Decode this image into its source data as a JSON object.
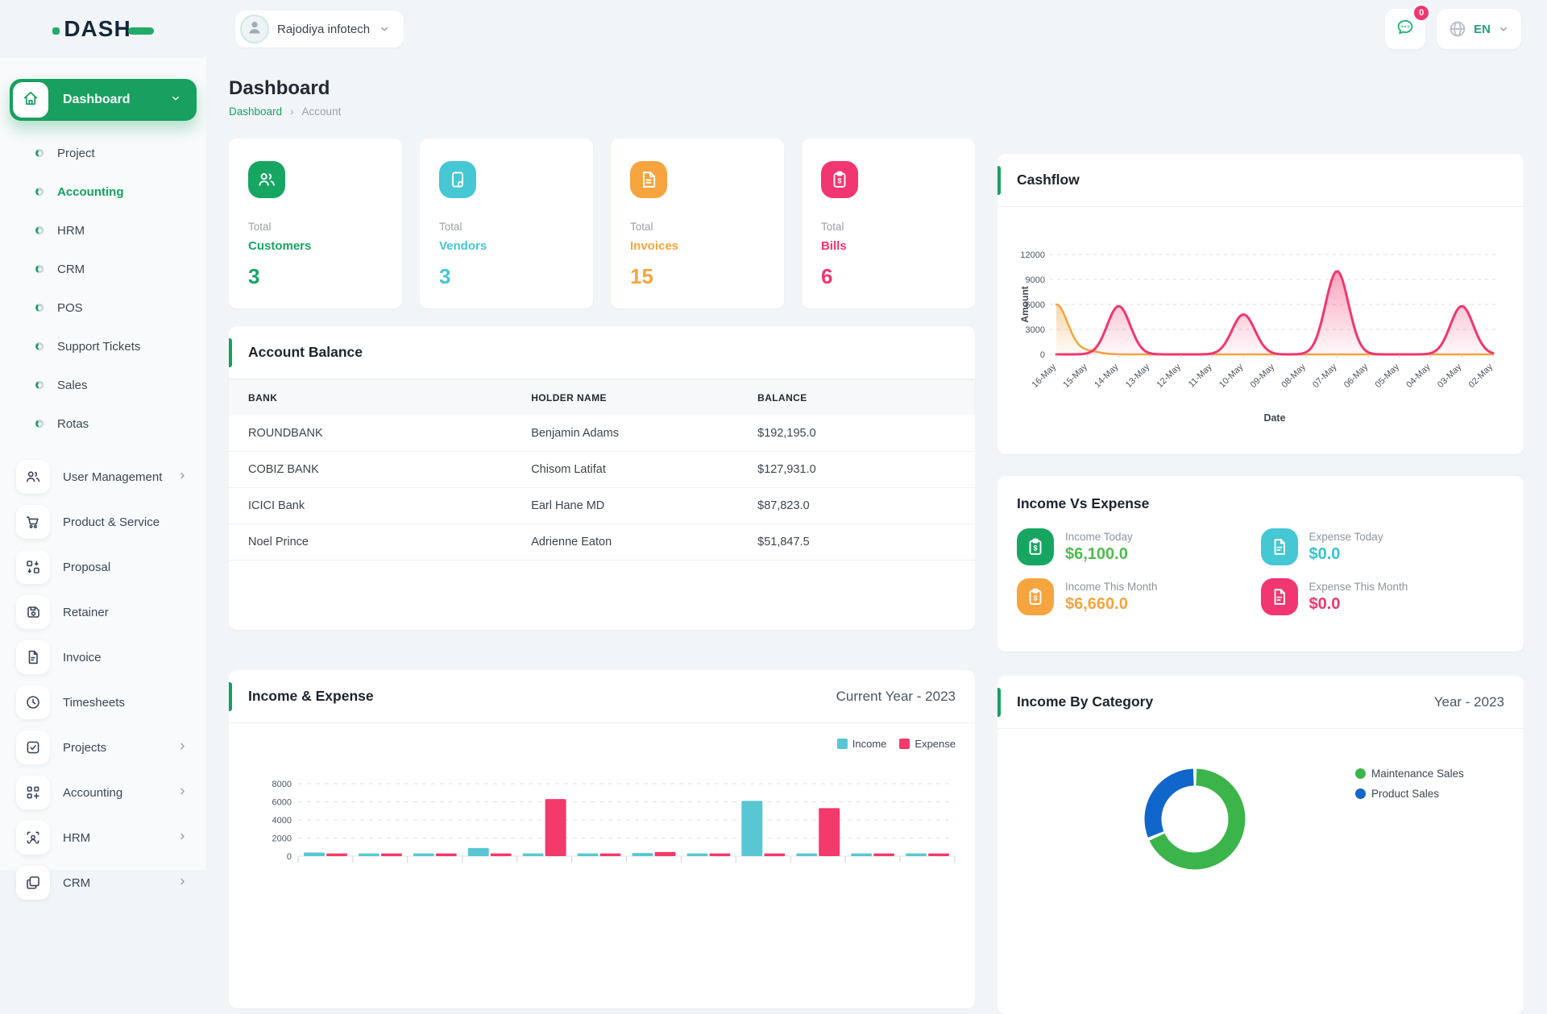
{
  "brand": {
    "name": "DASH"
  },
  "header": {
    "workspace": "Rajodiya infotech",
    "notification_badge": "0",
    "language": "EN"
  },
  "page": {
    "title": "Dashboard",
    "breadcrumb_root": "Dashboard",
    "breadcrumb_current": "Account"
  },
  "sidebar": {
    "main_label": "Dashboard",
    "submenu": [
      {
        "label": "Project",
        "active": false
      },
      {
        "label": "Accounting",
        "active": true
      },
      {
        "label": "HRM",
        "active": false
      },
      {
        "label": "CRM",
        "active": false
      },
      {
        "label": "POS",
        "active": false
      },
      {
        "label": "Support Tickets",
        "active": false
      },
      {
        "label": "Sales",
        "active": false
      },
      {
        "label": "Rotas",
        "active": false
      }
    ],
    "menu": [
      {
        "label": "User Management",
        "icon": "users",
        "chevron": true
      },
      {
        "label": "Product & Service",
        "icon": "cart",
        "chevron": false
      },
      {
        "label": "Proposal",
        "icon": "swap-boxes",
        "chevron": false
      },
      {
        "label": "Retainer",
        "icon": "save",
        "chevron": false
      },
      {
        "label": "Invoice",
        "icon": "file",
        "chevron": false
      },
      {
        "label": "Timesheets",
        "icon": "clock",
        "chevron": false
      },
      {
        "label": "Projects",
        "icon": "checkbox",
        "chevron": true
      },
      {
        "label": "Accounting",
        "icon": "grid-plus",
        "chevron": true
      },
      {
        "label": "HRM",
        "icon": "person-frame",
        "chevron": true
      },
      {
        "label": "CRM",
        "icon": "windows",
        "chevron": true
      }
    ]
  },
  "stats": [
    {
      "total_label": "Total",
      "name": "Customers",
      "value": "3",
      "color": "#17a661",
      "icon": "users"
    },
    {
      "total_label": "Total",
      "name": "Vendors",
      "value": "3",
      "color": "#45c7d4",
      "icon": "note"
    },
    {
      "total_label": "Total",
      "name": "Invoices",
      "value": "15",
      "color": "#f6a43e",
      "icon": "file-text"
    },
    {
      "total_label": "Total",
      "name": "Bills",
      "value": "6",
      "color": "#f2366f",
      "icon": "clipboard-dollar"
    }
  ],
  "account_balance": {
    "title": "Account Balance",
    "columns": [
      "BANK",
      "HOLDER NAME",
      "BALANCE"
    ],
    "rows": [
      [
        "ROUNDBANK",
        "Benjamin Adams",
        "$192,195.0"
      ],
      [
        "COBIZ BANK",
        "Chisom Latifat",
        "$127,931.0"
      ],
      [
        "ICICI Bank",
        "Earl Hane MD",
        "$87,823.0"
      ],
      [
        "Noel Prince",
        "Adrienne Eaton",
        "$51,847.5"
      ]
    ]
  },
  "income_vs_expense": {
    "title": "Income Vs Expense",
    "items": [
      {
        "label": "Income Today",
        "value": "$6,100.0",
        "icon": "clipboard-dollar",
        "icon_bg": "#17a661",
        "value_color": "#4dbd4d"
      },
      {
        "label": "Expense Today",
        "value": "$0.0",
        "icon": "file",
        "icon_bg": "#45c7d4",
        "value_color": "#35c3d2"
      },
      {
        "label": "Income This Month",
        "value": "$6,660.0",
        "icon": "clipboard-dollar",
        "icon_bg": "#f6a43e",
        "value_color": "#f6a43e"
      },
      {
        "label": "Expense This Month",
        "value": "$0.0",
        "icon": "file",
        "icon_bg": "#f2366f",
        "value_color": "#f2366f"
      }
    ]
  },
  "chart_data": {
    "cashflow": {
      "type": "area",
      "title": "Cashflow",
      "xlabel": "Date",
      "ylabel": "Amount",
      "ylim": [
        0,
        12000
      ],
      "yticks": [
        0,
        3000,
        6000,
        9000,
        12000
      ],
      "x": [
        "16-May",
        "15-May",
        "14-May",
        "13-May",
        "12-May",
        "11-May",
        "10-May",
        "09-May",
        "08-May",
        "07-May",
        "06-May",
        "05-May",
        "04-May",
        "03-May",
        "02-May"
      ],
      "series": [
        {
          "color": "#f6a43e",
          "values": [
            6000,
            400,
            0,
            0,
            0,
            0,
            0,
            0,
            0,
            0,
            0,
            0,
            0,
            0,
            0
          ]
        },
        {
          "color": "#f2366f",
          "values": [
            0,
            0,
            5800,
            0,
            0,
            0,
            4800,
            0,
            0,
            10000,
            0,
            0,
            0,
            5800,
            0
          ]
        }
      ]
    },
    "income_expense": {
      "type": "bar",
      "title": "Income & Expense",
      "period": "Current Year - 2023",
      "ylim": [
        0,
        8000
      ],
      "yticks": [
        0,
        2000,
        4000,
        6000,
        8000
      ],
      "legend_position": "top-right",
      "series": [
        {
          "name": "Income",
          "color": "#59c7d3",
          "values": [
            400,
            300,
            300,
            900,
            300,
            300,
            350,
            300,
            6100,
            300,
            300,
            300
          ]
        },
        {
          "name": "Expense",
          "color": "#f43a6a",
          "values": [
            300,
            300,
            300,
            300,
            6300,
            300,
            450,
            300,
            300,
            5300,
            300,
            300
          ]
        }
      ]
    },
    "income_by_category": {
      "type": "donut",
      "title": "Income By Category",
      "period": "Year - 2023",
      "slices": [
        {
          "label": "Maintenance Sales",
          "color": "#3bb54a",
          "pct": 68.5
        },
        {
          "label": "Product Sales",
          "color": "#1166cb",
          "pct": 31.5
        }
      ]
    }
  }
}
